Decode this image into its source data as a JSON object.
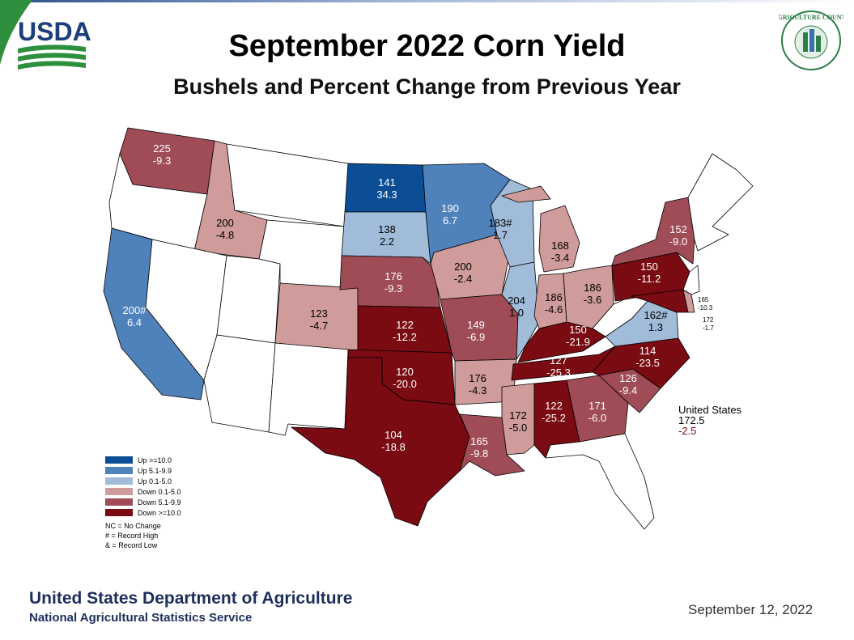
{
  "header": {
    "title": "September 2022 Corn Yield",
    "subtitle": "Bushels and Percent Change from Previous Year",
    "usda_logo_text": "USDA",
    "ag_counts_logo_text": "AGRICULTURE COUNTS"
  },
  "colors": {
    "up_high": "#0b4e96",
    "up_mid": "#4f82bb",
    "up_low": "#a0bcd9",
    "down_low": "#cf9b9b",
    "down_mid": "#9f4c56",
    "down_high": "#7a0b12",
    "no_data": "#ffffff",
    "usda_blue": "#1c3e7a",
    "usda_green": "#2e8f3e",
    "footer_blue": "#1c2e5c"
  },
  "map": {
    "states": [
      {
        "code": "WA",
        "yield": "225",
        "change": "-9.3",
        "category": "down_mid"
      },
      {
        "code": "OR",
        "yield": "",
        "change": "",
        "category": "no_data"
      },
      {
        "code": "CA",
        "yield": "200#",
        "change": "6.4",
        "category": "up_mid"
      },
      {
        "code": "ID",
        "yield": "200",
        "change": "-4.8",
        "category": "down_low"
      },
      {
        "code": "NV",
        "yield": "",
        "change": "",
        "category": "no_data"
      },
      {
        "code": "UT",
        "yield": "",
        "change": "",
        "category": "no_data"
      },
      {
        "code": "AZ",
        "yield": "",
        "change": "",
        "category": "no_data"
      },
      {
        "code": "MT",
        "yield": "",
        "change": "",
        "category": "no_data"
      },
      {
        "code": "WY",
        "yield": "",
        "change": "",
        "category": "no_data"
      },
      {
        "code": "CO",
        "yield": "123",
        "change": "-4.7",
        "category": "down_low"
      },
      {
        "code": "NM",
        "yield": "",
        "change": "",
        "category": "no_data"
      },
      {
        "code": "ND",
        "yield": "141",
        "change": "34.3",
        "category": "up_high"
      },
      {
        "code": "SD",
        "yield": "138",
        "change": "2.2",
        "category": "up_low"
      },
      {
        "code": "NE",
        "yield": "176",
        "change": "-9.3",
        "category": "down_mid"
      },
      {
        "code": "KS",
        "yield": "122",
        "change": "-12.2",
        "category": "down_high"
      },
      {
        "code": "OK",
        "yield": "120",
        "change": "-20.0",
        "category": "down_high"
      },
      {
        "code": "TX",
        "yield": "104",
        "change": "-18.8",
        "category": "down_high"
      },
      {
        "code": "MN",
        "yield": "190",
        "change": "6.7",
        "category": "up_mid"
      },
      {
        "code": "IA",
        "yield": "200",
        "change": "-2.4",
        "category": "down_low"
      },
      {
        "code": "MO",
        "yield": "149",
        "change": "-6.9",
        "category": "down_mid"
      },
      {
        "code": "AR",
        "yield": "176",
        "change": "-4.3",
        "category": "down_low"
      },
      {
        "code": "LA",
        "yield": "165",
        "change": "-9.8",
        "category": "down_mid"
      },
      {
        "code": "WI",
        "yield": "183#",
        "change": "1.7",
        "category": "up_low"
      },
      {
        "code": "IL",
        "yield": "204",
        "change": "1.0",
        "category": "up_low"
      },
      {
        "code": "MI",
        "yield": "168",
        "change": "-3.4",
        "category": "down_low"
      },
      {
        "code": "IN",
        "yield": "186",
        "change": "-4.6",
        "category": "down_low"
      },
      {
        "code": "OH",
        "yield": "186",
        "change": "-3.6",
        "category": "down_low"
      },
      {
        "code": "KY",
        "yield": "150",
        "change": "-21.9",
        "category": "down_high"
      },
      {
        "code": "TN",
        "yield": "127",
        "change": "-25.3",
        "category": "down_high"
      },
      {
        "code": "MS",
        "yield": "172",
        "change": "-5.0",
        "category": "down_low"
      },
      {
        "code": "AL",
        "yield": "122",
        "change": "-25.2",
        "category": "down_high"
      },
      {
        "code": "GA",
        "yield": "171",
        "change": "-6.0",
        "category": "down_mid"
      },
      {
        "code": "FL",
        "yield": "",
        "change": "",
        "category": "no_data"
      },
      {
        "code": "SC",
        "yield": "126",
        "change": "-9.4",
        "category": "down_mid"
      },
      {
        "code": "NC",
        "yield": "114",
        "change": "-23.5",
        "category": "down_high"
      },
      {
        "code": "VA",
        "yield": "162#",
        "change": "1.3",
        "category": "up_low"
      },
      {
        "code": "WV",
        "yield": "",
        "change": "",
        "category": "no_data"
      },
      {
        "code": "PA",
        "yield": "150",
        "change": "-11.2",
        "category": "down_high"
      },
      {
        "code": "NY",
        "yield": "152",
        "change": "-9.0",
        "category": "down_mid"
      },
      {
        "code": "MD",
        "yield": "165",
        "change": "-10.3",
        "category": "down_high"
      },
      {
        "code": "DE",
        "yield": "172",
        "change": "-1.7",
        "category": "down_low"
      },
      {
        "code": "NJ",
        "yield": "",
        "change": "",
        "category": "no_data"
      },
      {
        "code": "NE-REGION",
        "yield": "",
        "change": "",
        "category": "no_data"
      }
    ]
  },
  "legend": {
    "items": [
      {
        "label": "Up >=10.0",
        "category": "up_high"
      },
      {
        "label": "Up 5.1-9.9",
        "category": "up_mid"
      },
      {
        "label": "Up 0.1-5.0",
        "category": "up_low"
      },
      {
        "label": "Down 0.1-5.0",
        "category": "down_low"
      },
      {
        "label": "Down 5.1-9.9",
        "category": "down_mid"
      },
      {
        "label": "Down >=10.0",
        "category": "down_high"
      }
    ],
    "notes": [
      "NC = No Change",
      "# = Record High",
      "& = Record Low"
    ]
  },
  "us_total": {
    "label": "United States",
    "yield": "172.5",
    "change": "-2.5"
  },
  "footer": {
    "department": "United States Department of Agriculture",
    "service": "National Agricultural Statistics Service",
    "date": "September 12, 2022"
  }
}
